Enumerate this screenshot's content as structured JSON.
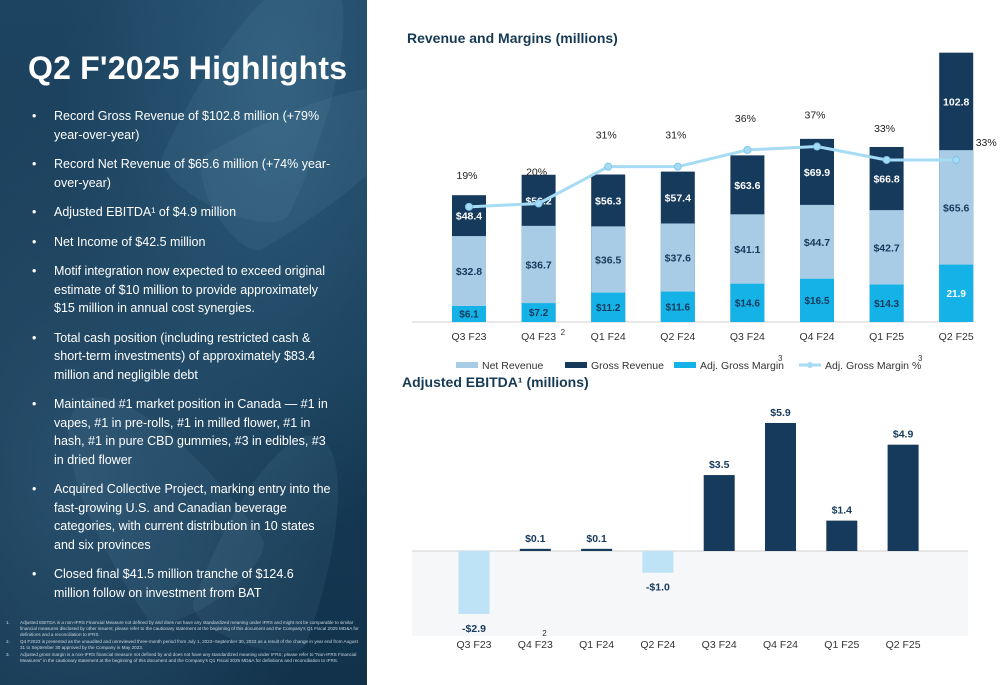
{
  "title": "Q2 F'2025 Highlights",
  "bullets": [
    "Record Gross Revenue of $102.8 million (+79% year-over-year)",
    "Record Net Revenue of $65.6 million (+74% year-over-year)",
    "Adjusted EBITDA¹ of $4.9 million",
    "Net Income of $42.5 million",
    "Motif integration now expected to exceed original estimate of $10 million to provide approximately $15 million in annual cost synergies.",
    "Total cash position (including restricted cash & short-term investments) of approximately $83.4 million and negligible debt",
    "Maintained #1 market position in Canada — #1 in vapes, #1 in pre-rolls, #1 in milled flower, #1 in hash, #1 in pure CBD gummies, #3 in edibles, #3 in dried flower",
    "Acquired Collective Project, marking entry into the fast-growing U.S. and Canadian beverage categories, with current distribution in 10 states and six provinces",
    "Closed final $41.5 million tranche of $124.6 million follow on investment from BAT"
  ],
  "footnotes": [
    {
      "num": "1.",
      "text": "Adjusted EBITDA is a non-IFRS Financial Measure not defined by and does not have any standardized meaning under IFRS and might not be comparable to similar financial measures disclosed by other issuers; please refer to the cautionary statement at the beginning of this document and the Company's Q1 Fiscal 2025 MD&A for definitions and a reconciliation to IFRS."
    },
    {
      "num": "2.",
      "text": "Q4 F2023 is presented as the unaudited and unreviewed three-month period from July 1, 2023–September 30, 2023 as a result of the change in year end from August 31 to September 30 approved by the Company in May 2023."
    },
    {
      "num": "3.",
      "text": "Adjusted gross margin is a non-IFRS financial measure not defined by and does not have any standardized meaning under IFRS; please refer to \"Non-IFRS Financial Measures\" in the cautionary statement at the beginning of this document and the Company's Q1 Fiscal 2025 MD&A for definitions and reconciliation to IFRS."
    }
  ],
  "chart_data": [
    {
      "type": "bar",
      "title": "Revenue and Margins (millions)",
      "categories": [
        "Q3 F23",
        "Q4 F23",
        "Q1 F24",
        "Q2 F24",
        "Q3 F24",
        "Q4 F24",
        "Q1 F25",
        "Q2 F25"
      ],
      "category_superscripts": [
        "",
        "2",
        "",
        "",
        "",
        "",
        "",
        ""
      ],
      "series": [
        {
          "name": "Net Revenue",
          "kind": "bar",
          "values": [
            32.8,
            36.7,
            36.5,
            37.6,
            41.1,
            44.7,
            42.7,
            65.6
          ],
          "labels": [
            "$32.8",
            "$36.7",
            "$36.5",
            "$37.6",
            "$41.1",
            "$44.7",
            "$42.7",
            "$65.6"
          ]
        },
        {
          "name": "Gross Revenue",
          "kind": "bar",
          "values": [
            48.4,
            56.2,
            56.3,
            57.4,
            63.6,
            69.9,
            66.8,
            102.8
          ],
          "labels": [
            "$48.4",
            "$56.2",
            "$56.3",
            "$57.4",
            "$63.6",
            "$69.9",
            "$66.8",
            "102.8"
          ]
        },
        {
          "name": "Adj. Gross Margin",
          "superscript": "3",
          "kind": "bar",
          "values": [
            6.1,
            7.2,
            11.2,
            11.6,
            14.6,
            16.5,
            14.3,
            21.9
          ],
          "labels": [
            "$6.1",
            "$7.2",
            "$11.2",
            "$11.6",
            "$14.6",
            "$16.5",
            "$14.3",
            "21.9"
          ]
        },
        {
          "name": "Adj. Gross Margin %",
          "superscript": "3",
          "kind": "line",
          "values": [
            19,
            20,
            31,
            31,
            36,
            37,
            33,
            33
          ],
          "labels": [
            "19%",
            "20%",
            "31%",
            "31%",
            "36%",
            "37%",
            "33%",
            "33%"
          ]
        }
      ],
      "legend_position": "bottom",
      "colors": {
        "net": "#a9cce6",
        "gross": "#163a5c",
        "margin": "#14b2e6",
        "line": "#a6dbf4"
      }
    },
    {
      "type": "bar",
      "title": "Adjusted EBITDA¹ (millions)",
      "categories": [
        "Q3 F23",
        "Q4 F23",
        "Q1 F24",
        "Q2 F24",
        "Q3 F24",
        "Q4 F24",
        "Q1 F25",
        "Q2 F25"
      ],
      "category_superscripts": [
        "",
        "2",
        "",
        "",
        "",
        "",
        "",
        ""
      ],
      "values": [
        -2.9,
        0.1,
        0.1,
        -1.0,
        3.5,
        5.9,
        1.4,
        4.9
      ],
      "labels": [
        "-$2.9",
        "$0.1",
        "$0.1",
        "-$1.0",
        "$3.5",
        "$5.9",
        "$1.4",
        "$4.9"
      ],
      "colors": {
        "positive": "#163a5c",
        "negative": "#bfe3f6"
      }
    }
  ]
}
